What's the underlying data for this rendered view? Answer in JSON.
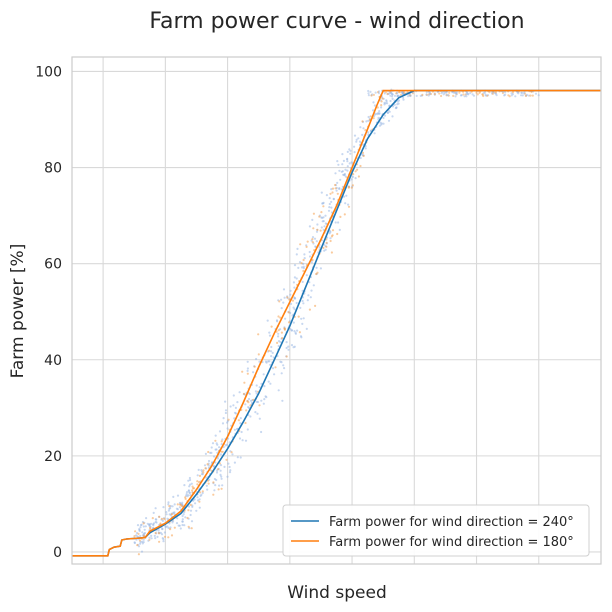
{
  "chart_data": {
    "type": "line",
    "title": "Farm power curve - wind direction",
    "xlabel": "Wind speed",
    "ylabel": "Farm power [%]",
    "xlim": [
      0,
      17
    ],
    "ylim": [
      -2.5,
      103
    ],
    "xticks_labeled": false,
    "yticks": [
      0,
      20,
      40,
      60,
      80,
      100
    ],
    "grid": true,
    "legend_position": "bottom-right",
    "series": [
      {
        "name": "Farm power for wind direction = 240°",
        "color": "#1f77b4",
        "x": [
          0,
          1.15,
          1.2,
          1.35,
          1.55,
          1.6,
          1.75,
          2.0,
          2.35,
          2.5,
          3.0,
          3.5,
          4.0,
          4.5,
          5.0,
          5.5,
          6.0,
          6.5,
          7.0,
          7.5,
          8.0,
          8.5,
          9.0,
          9.5,
          10.0,
          10.5,
          11.0,
          11.5,
          11.8,
          12.0,
          17.0
        ],
        "y": [
          -0.8,
          -0.8,
          0.5,
          1.0,
          1.2,
          2.5,
          2.7,
          2.8,
          3.0,
          4.0,
          5.8,
          8.0,
          12.0,
          16.5,
          21.5,
          27.0,
          33.0,
          40.0,
          47.0,
          55.0,
          63.0,
          71.0,
          79.0,
          86.0,
          91.0,
          94.5,
          96.0,
          96.0,
          96.0,
          96.0,
          96.0
        ]
      },
      {
        "name": "Farm power for wind direction = 180°",
        "color": "#ff7f0e",
        "x": [
          0,
          1.15,
          1.2,
          1.35,
          1.55,
          1.6,
          1.75,
          2.0,
          2.35,
          2.5,
          3.0,
          3.5,
          4.0,
          4.5,
          5.0,
          5.5,
          6.0,
          6.5,
          7.0,
          7.5,
          8.0,
          8.5,
          9.0,
          9.5,
          9.8,
          10.0,
          10.3,
          11.0,
          12.0,
          17.0
        ],
        "y": [
          -0.8,
          -0.8,
          0.5,
          1.0,
          1.2,
          2.5,
          2.7,
          2.8,
          3.0,
          4.3,
          6.0,
          8.5,
          13.0,
          18.0,
          24.0,
          31.0,
          38.5,
          45.5,
          52.0,
          58.5,
          65.0,
          72.0,
          80.0,
          88.0,
          93.0,
          96.0,
          96.0,
          96.0,
          96.0,
          96.0
        ]
      }
    ]
  }
}
